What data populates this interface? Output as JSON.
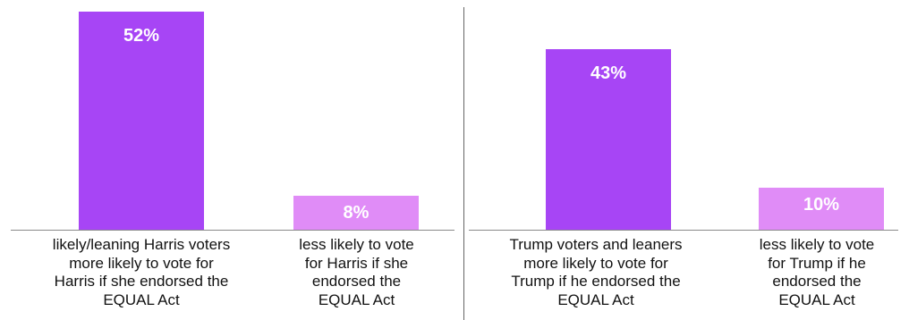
{
  "chart_data": {
    "type": "bar",
    "ylim": [
      0,
      52
    ],
    "grid": false,
    "panels": [
      {
        "categories": [
          "likely/leaning Harris voters\nmore likely to vote for\nHarris if she endorsed the\nEQUAL Act",
          "less likely to vote\nfor Harris if she\nendorsed the\nEQUAL Act"
        ],
        "values": [
          52,
          8
        ],
        "data_labels": [
          "52%",
          "8%"
        ],
        "colors": [
          "#a745f5",
          "#e08cf7"
        ]
      },
      {
        "categories": [
          "Trump voters and leaners\nmore likely to vote for\nTrump if he endorsed the\nEQUAL Act",
          "less likely to vote\nfor Trump if he\nendorsed the\nEQUAL Act"
        ],
        "values": [
          43,
          10
        ],
        "data_labels": [
          "43%",
          "10%"
        ],
        "colors": [
          "#a745f5",
          "#e08cf7"
        ]
      }
    ]
  }
}
